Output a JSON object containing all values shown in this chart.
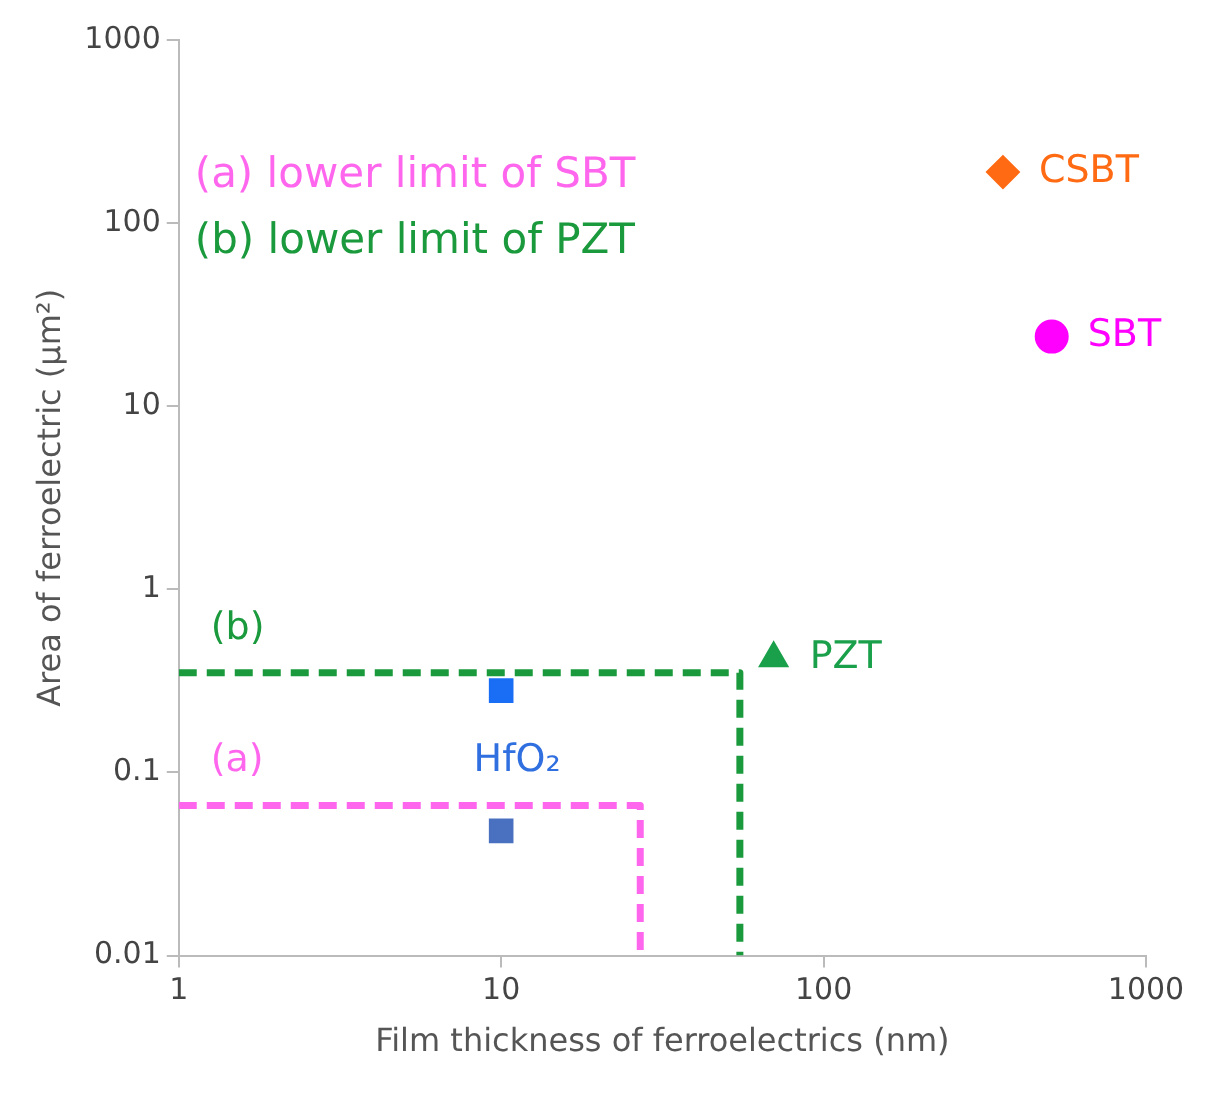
{
  "chart_data": {
    "type": "scatter",
    "xlabel": "Film thickness of ferroelectrics (nm)",
    "ylabel": "Area of ferroelectric (µm²)",
    "log": "xy",
    "xlim": [
      1,
      1000
    ],
    "xticks": [
      1,
      10,
      100,
      1000
    ],
    "ylim": [
      0.01,
      1000
    ],
    "yticks": [
      0.01,
      0.1,
      1,
      10,
      100,
      1000
    ],
    "grid": false,
    "legend": false,
    "annotations": [
      "(a) lower limit of SBT",
      "(b) lower limit of PZT"
    ],
    "series": [
      {
        "name": "(a)",
        "type": "line",
        "line_style": "dashed",
        "marker": "none",
        "color": "#ff66ee",
        "x": [
          1,
          27,
          27
        ],
        "values": [
          0.066,
          0.066,
          0.01
        ]
      },
      {
        "name": "(b)",
        "type": "line",
        "line_style": "dashed",
        "marker": "none",
        "color": "#1a9a3c",
        "x": [
          1,
          55,
          55
        ],
        "values": [
          0.35,
          0.35,
          0.01
        ]
      },
      {
        "name": "CSBT",
        "marker": "diamond",
        "color": "#ff6a13",
        "x": [
          360
        ],
        "values": [
          190
        ]
      },
      {
        "name": "SBT",
        "marker": "circle",
        "color": "#ff00ff",
        "x": [
          510
        ],
        "values": [
          24
        ]
      },
      {
        "name": "PZT",
        "marker": "triangle",
        "color": "#1aa04a",
        "x": [
          70
        ],
        "values": [
          0.42
        ]
      },
      {
        "name": "HfO₂",
        "marker": "square",
        "color": "#2f6fe0",
        "colors": [
          "#1a6ef5",
          "#4a70c0"
        ],
        "x": [
          10,
          10
        ],
        "values": [
          0.28,
          0.048
        ]
      }
    ]
  }
}
